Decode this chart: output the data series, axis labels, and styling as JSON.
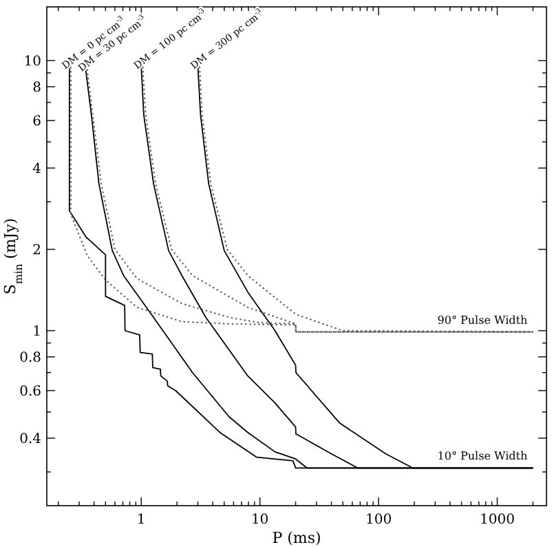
{
  "chart_data": {
    "type": "line",
    "xlabel": "P (ms)",
    "ylabel": "S$_{min}$ (mJy)",
    "log": "xy",
    "grid": false,
    "legend": "top left",
    "marker": "none",
    "xlim": [
      0.16,
      2600
    ],
    "ylim": [
      0.225,
      15.8
    ],
    "xticks": [
      {
        "value": 0.2,
        "label": null
      },
      {
        "value": 0.3,
        "label": null
      },
      {
        "value": 0.4,
        "label": null
      },
      {
        "value": 0.5,
        "label": null
      },
      {
        "value": 0.6,
        "label": null
      },
      {
        "value": 0.7,
        "label": null
      },
      {
        "value": 0.8,
        "label": null
      },
      {
        "value": 0.9,
        "label": null
      },
      1,
      {
        "value": 2,
        "label": null
      },
      {
        "value": 3,
        "label": null
      },
      {
        "value": 4,
        "label": null
      },
      {
        "value": 5,
        "label": null
      },
      {
        "value": 6,
        "label": null
      },
      {
        "value": 7,
        "label": null
      },
      {
        "value": 8,
        "label": null
      },
      {
        "value": 9,
        "label": null
      },
      10,
      {
        "value": 20,
        "label": null
      },
      {
        "value": 30,
        "label": null
      },
      {
        "value": 40,
        "label": null
      },
      {
        "value": 50,
        "label": null
      },
      {
        "value": 60,
        "label": null
      },
      {
        "value": 70,
        "label": null
      },
      {
        "value": 80,
        "label": null
      },
      {
        "value": 90,
        "label": null
      },
      100,
      {
        "value": 200,
        "label": null
      },
      {
        "value": 300,
        "label": null
      },
      {
        "value": 400,
        "label": null
      },
      {
        "value": 500,
        "label": null
      },
      {
        "value": 600,
        "label": null
      },
      {
        "value": 700,
        "label": null
      },
      {
        "value": 800,
        "label": null
      },
      {
        "value": 900,
        "label": null
      },
      1000,
      {
        "value": 2000,
        "label": null
      }
    ],
    "yticks": [
      {
        "value": 0.3,
        "label": null
      },
      0.4,
      {
        "value": 0.5,
        "label": null
      },
      0.6,
      {
        "value": 0.7,
        "label": null
      },
      0.8,
      {
        "value": 0.9,
        "label": null
      },
      1,
      2,
      {
        "value": 3,
        "label": null
      },
      4,
      {
        "value": 5,
        "label": null
      },
      6,
      {
        "value": 7,
        "label": null
      },
      8,
      {
        "value": 9,
        "label": null
      },
      10
    ],
    "series": [
      {
        "name": "DM = 0 pc cm$^{-3}$",
        "color": "#000000",
        "line_style": "solid",
        "x": [
          0.248,
          0.248,
          0.343,
          0.5,
          0.5,
          0.725,
          0.73,
          0.97,
          0.98,
          1.24,
          1.25,
          1.45,
          1.46,
          1.66,
          1.67,
          1.95,
          4.6,
          9.4,
          19,
          20,
          2000
        ],
        "values": [
          9.5,
          2.78,
          2.22,
          1.91,
          1.34,
          1.24,
          1.0,
          0.965,
          0.83,
          0.82,
          0.73,
          0.72,
          0.68,
          0.65,
          0.625,
          0.6,
          0.42,
          0.34,
          0.33,
          0.31,
          0.31
        ]
      },
      {
        "name": "DM = 30 pc cm$^{-3}$",
        "color": "#000000",
        "line_style": "solid",
        "x": [
          0.34,
          0.38,
          0.44,
          0.57,
          0.71,
          1.2,
          2.7,
          5.5,
          7.9,
          13.4,
          20,
          25,
          2000
        ],
        "values": [
          9.3,
          6.3,
          3.5,
          1.98,
          1.6,
          1.16,
          0.7,
          0.48,
          0.42,
          0.356,
          0.335,
          0.31,
          0.31
        ]
      },
      {
        "name": "DM = 100 pc cm$^{-3}$",
        "color": "#000000",
        "line_style": "solid",
        "x": [
          1.0,
          1.05,
          1.27,
          1.7,
          2.2,
          3.5,
          7.9,
          13.4,
          20,
          20.1,
          40,
          67,
          2000
        ],
        "values": [
          9.5,
          6.3,
          3.5,
          1.98,
          1.6,
          1.12,
          0.68,
          0.54,
          0.44,
          0.415,
          0.35,
          0.31,
          0.31
        ]
      },
      {
        "name": "DM = 300 pc cm$^{-3}$",
        "color": "#000000",
        "line_style": "solid",
        "x": [
          3.0,
          3.16,
          3.7,
          5.0,
          7.9,
          13.4,
          20,
          20.1,
          47,
          115,
          195,
          2000
        ],
        "values": [
          9.5,
          6.3,
          3.5,
          1.98,
          1.39,
          1.0,
          0.745,
          0.7,
          0.455,
          0.35,
          0.31,
          0.31
        ]
      },
      {
        "color": "#555555",
        "line_style": "dotted",
        "x": [
          0.255,
          0.255,
          0.35,
          0.5,
          0.92,
          2.2,
          5.5,
          20,
          20.1,
          2000
        ],
        "values": [
          9.5,
          2.7,
          1.9,
          1.54,
          1.22,
          1.08,
          1.06,
          1.05,
          0.99,
          0.99
        ]
      },
      {
        "color": "#555555",
        "line_style": "dotted",
        "x": [
          0.35,
          0.39,
          0.46,
          0.6,
          0.92,
          2.2,
          5.5,
          10,
          20,
          20.1,
          2000
        ],
        "values": [
          9.3,
          6.3,
          3.5,
          2.0,
          1.56,
          1.26,
          1.12,
          1.07,
          1.06,
          0.99,
          0.99
        ]
      },
      {
        "color": "#555555",
        "line_style": "dotted",
        "x": [
          1.03,
          1.09,
          1.32,
          1.8,
          2.7,
          7.9,
          20,
          20.1,
          2000
        ],
        "values": [
          9.5,
          6.3,
          3.5,
          2.0,
          1.6,
          1.22,
          1.06,
          0.99,
          0.99
        ]
      },
      {
        "color": "#555555",
        "line_style": "dotted",
        "x": [
          3.1,
          3.26,
          3.85,
          5.3,
          7.9,
          20,
          50,
          2000
        ],
        "values": [
          9.5,
          6.3,
          3.5,
          2.0,
          1.6,
          1.15,
          1.0,
          0.99
        ]
      }
    ],
    "annotations": [
      {
        "text": "90° Pulse Width",
        "x": 750,
        "y": 0.99
      },
      {
        "text": "10° Pulse Width",
        "x": 750,
        "y": 0.31
      }
    ]
  }
}
